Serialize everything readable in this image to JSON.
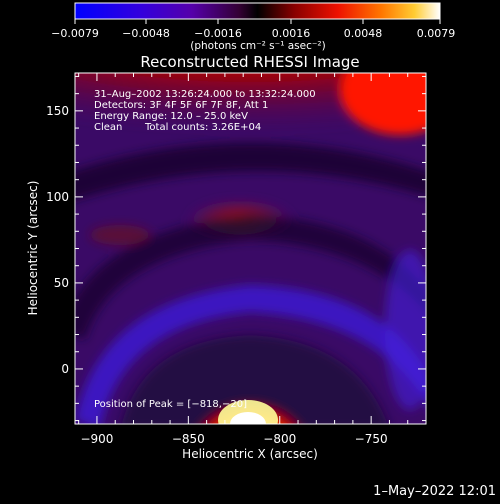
{
  "colorbar": {
    "tick_labels": [
      "−0.0079",
      "−0.0048",
      "−0.0016",
      "0.0016",
      "0.0048",
      "0.0079"
    ],
    "unit_label": "(photons cm⁻² s⁻¹ asec⁻²)"
  },
  "info": {
    "time_range": "31–Aug–2002 13:26:24.000 to 13:32:24.000",
    "detectors": "Detectors: 3F 4F 5F 6F 7F 8F, Att 1",
    "energy": "Energy Range: 12.0 – 25.0 keV",
    "clean": "Clean",
    "total_counts": "Total counts: 3.26E+04",
    "peak": "Position of Peak = [−818,−20]"
  },
  "footer": {
    "timestamp": "1–May–2022 12:01"
  },
  "chart_data": {
    "type": "heatmap",
    "title": "Reconstructed RHESSI Image",
    "xlabel": "Heliocentric X (arcsec)",
    "ylabel": "Heliocentric Y (arcsec)",
    "xlim": [
      -912,
      -720
    ],
    "ylim": [
      -32,
      172
    ],
    "x_ticks": [
      -900,
      -850,
      -800,
      -750
    ],
    "x_tick_labels": [
      "−900",
      "−850",
      "−800",
      "−750"
    ],
    "y_ticks": [
      0,
      50,
      100,
      150
    ],
    "y_tick_labels": [
      "0",
      "50",
      "100",
      "150"
    ],
    "color_range": [
      -0.0079,
      0.0079
    ],
    "colormap": [
      "#0000ff",
      "#4400cc",
      "#550088",
      "#440044",
      "#000000",
      "#660000",
      "#cc0000",
      "#ff4400",
      "#ff9900",
      "#ffff66",
      "#ffffff"
    ],
    "peak_position": [
      -818,
      -20
    ]
  }
}
